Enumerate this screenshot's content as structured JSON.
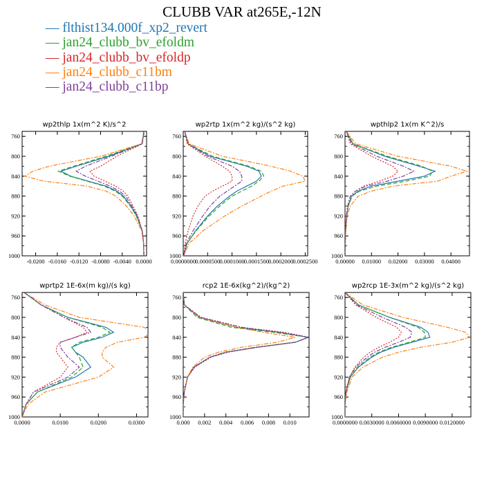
{
  "title": "CLUBB VAR at265E,-12N",
  "legend": [
    {
      "label": "flthist134.000f_xp2_revert",
      "color": "#1f77b4",
      "dash": "solid"
    },
    {
      "label": "jan24_clubb_bv_efoldm",
      "color": "#2ca02c",
      "dash": "dash"
    },
    {
      "label": "jan24_clubb_bv_efoldp",
      "color": "#d62728",
      "dash": "dot"
    },
    {
      "label": "jan24_clubb_c11bm",
      "color": "#ff7f0e",
      "dash": "dashdot"
    },
    {
      "label": "jan24_clubb_c11bp",
      "color": "#7f3f98",
      "dash": "dashdot"
    }
  ],
  "chart_data": [
    {
      "type": "line",
      "title": "wp2thlp   1x(m^2 K)/s^2",
      "xlim": [
        -0.0225,
        0.0005
      ],
      "ylim": [
        1000,
        750
      ],
      "xticks": [
        -0.02,
        -0.016,
        -0.012,
        -0.008,
        -0.004,
        0.0
      ],
      "xtick_labels": [
        "-0.0200",
        "-0.0160",
        "-0.0120",
        "-0.0080",
        "-0.0040",
        "0.0000"
      ],
      "yticks": [
        760,
        800,
        840,
        880,
        920,
        960,
        1000
      ],
      "ytick_labels": [
        "760",
        "800",
        "840",
        "880",
        "920",
        "960",
        "1000"
      ],
      "y": [
        750,
        775,
        800,
        820,
        830,
        840,
        850,
        860,
        870,
        880,
        900,
        920,
        950,
        975,
        1000
      ],
      "series": [
        {
          "name": "flthist134.000f_xp2_revert",
          "values": [
            0,
            -0.0003,
            -0.0065,
            -0.0125,
            -0.0153,
            -0.0135,
            -0.0103,
            -0.007,
            -0.005,
            -0.0038,
            -0.0024,
            -0.0013,
            -0.0003,
            -5e-05,
            0
          ]
        },
        {
          "name": "jan24_clubb_bv_efoldm",
          "values": [
            0,
            -0.0004,
            -0.007,
            -0.013,
            -0.0158,
            -0.0137,
            -0.0105,
            -0.0073,
            -0.0053,
            -0.004,
            -0.0025,
            -0.0014,
            -0.0003,
            -5e-05,
            0
          ]
        },
        {
          "name": "jan24_clubb_bv_efoldp",
          "values": [
            0,
            -0.0003,
            -0.005,
            -0.008,
            -0.01,
            -0.0092,
            -0.0072,
            -0.0052,
            -0.0038,
            -0.003,
            -0.002,
            -0.0011,
            -0.0003,
            -5e-05,
            0
          ]
        },
        {
          "name": "jan24_clubb_c11bm",
          "values": [
            0,
            -0.0004,
            -0.008,
            -0.0175,
            -0.0205,
            -0.022,
            -0.0185,
            -0.0105,
            -0.007,
            -0.0052,
            -0.0032,
            -0.0018,
            -0.0004,
            -5e-05,
            0
          ]
        },
        {
          "name": "jan24_clubb_c11bp",
          "values": [
            0,
            -0.0003,
            -0.006,
            -0.0108,
            -0.0125,
            -0.0108,
            -0.0085,
            -0.0062,
            -0.0045,
            -0.0034,
            -0.0022,
            -0.0012,
            -0.0003,
            -5e-05,
            0
          ]
        }
      ]
    },
    {
      "type": "line",
      "title": "wp2rtp   1x(m^2 kg)/(s^2 kg)",
      "xlim": [
        0.0,
        0.000255
      ],
      "ylim": [
        1000,
        750
      ],
      "xticks": [
        0.0,
        5e-05,
        0.0001,
        0.00015,
        0.0002,
        0.00025
      ],
      "xtick_labels": [
        "0.0000000",
        "0.0000500",
        "0.0001000",
        "0.0001500",
        "0.0002000",
        "0.0002500"
      ],
      "yticks": [
        760,
        800,
        840,
        880,
        920,
        960,
        1000
      ],
      "ytick_labels": [
        "760",
        "800",
        "840",
        "880",
        "920",
        "960",
        "1000"
      ],
      "y": [
        750,
        775,
        800,
        820,
        830,
        840,
        850,
        860,
        870,
        880,
        900,
        920,
        950,
        975,
        1000
      ],
      "series": [
        {
          "name": "flthist134.000f_xp2_revert",
          "values": [
            3e-06,
            1e-05,
            5.5e-05,
            0.00013,
            0.000155,
            0.00016,
            0.00015,
            0.00013,
            0.00011,
            9.5e-05,
            7e-05,
            5e-05,
            2.5e-05,
            8e-06,
            1e-06
          ]
        },
        {
          "name": "jan24_clubb_bv_efoldm",
          "values": [
            3e-06,
            1e-05,
            6e-05,
            0.000135,
            0.00016,
            0.000165,
            0.000155,
            0.00014,
            0.00012,
            0.0001,
            7.5e-05,
            5.3e-05,
            2.6e-05,
            8e-06,
            1e-06
          ]
        },
        {
          "name": "jan24_clubb_bv_efoldp",
          "values": [
            3e-06,
            8e-06,
            4.5e-05,
            8e-05,
            9.5e-05,
            0.0001,
            0.0001,
            8e-05,
            6e-05,
            4.5e-05,
            3e-05,
            2e-05,
            1e-05,
            4e-06,
            1e-06
          ]
        },
        {
          "name": "jan24_clubb_c11bm",
          "values": [
            3e-06,
            1.2e-05,
            8e-05,
            0.00018,
            0.00022,
            0.000245,
            0.00025,
            0.000205,
            0.00018,
            0.00016,
            0.00012,
            8.5e-05,
            4e-05,
            1.2e-05,
            1e-06
          ]
        },
        {
          "name": "jan24_clubb_c11bp",
          "values": [
            3e-06,
            1e-05,
            5e-05,
            0.0001,
            0.000115,
            0.00012,
            0.00012,
            0.000105,
            9e-05,
            7.5e-05,
            5.5e-05,
            4e-05,
            2e-05,
            6e-06,
            1e-06
          ]
        }
      ]
    },
    {
      "type": "line",
      "title": "wpthlp2   1x(m K^2)/s",
      "xlim": [
        0.0,
        0.047
      ],
      "ylim": [
        1000,
        750
      ],
      "xticks": [
        0.0,
        0.01,
        0.02,
        0.03,
        0.04
      ],
      "xtick_labels": [
        "0.00000",
        "0.01000",
        "0.02000",
        "0.03000",
        "0.04000"
      ],
      "yticks": [
        760,
        800,
        840,
        880,
        920,
        960,
        1000
      ],
      "ytick_labels": [
        "760",
        "800",
        "840",
        "880",
        "920",
        "960",
        "1000"
      ],
      "y": [
        750,
        775,
        800,
        820,
        830,
        840,
        850,
        860,
        870,
        880,
        900,
        920,
        950,
        975,
        1000
      ],
      "series": [
        {
          "name": "flthist134.000f_xp2_revert",
          "values": [
            0.0005,
            0.003,
            0.015,
            0.028,
            0.034,
            0.03,
            0.02,
            0.01,
            0.005,
            0.0025,
            0.0012,
            0.0006,
            0.0002,
            0.0001,
            0.0
          ]
        },
        {
          "name": "jan24_clubb_bv_efoldm",
          "values": [
            0.0005,
            0.003,
            0.016,
            0.029,
            0.033,
            0.032,
            0.023,
            0.012,
            0.0055,
            0.0027,
            0.0012,
            0.0006,
            0.0002,
            0.0001,
            0.0
          ]
        },
        {
          "name": "jan24_clubb_bv_efoldp",
          "values": [
            0.0005,
            0.002,
            0.01,
            0.018,
            0.02,
            0.018,
            0.013,
            0.007,
            0.004,
            0.002,
            0.001,
            0.0005,
            0.0002,
            0.0001,
            0.0
          ]
        },
        {
          "name": "jan24_clubb_c11bm",
          "values": [
            0.0005,
            0.004,
            0.02,
            0.04,
            0.046,
            0.04,
            0.035,
            0.018,
            0.01,
            0.005,
            0.002,
            0.0008,
            0.0003,
            0.0001,
            0.0
          ]
        },
        {
          "name": "jan24_clubb_c11bp",
          "values": [
            0.0005,
            0.0025,
            0.012,
            0.022,
            0.026,
            0.022,
            0.016,
            0.008,
            0.004,
            0.002,
            0.001,
            0.0005,
            0.0002,
            0.0001,
            0.0
          ]
        }
      ]
    },
    {
      "type": "line",
      "title": "wprtp2   1E-6x(m kg)/(s kg)",
      "xlim": [
        0.0,
        0.033
      ],
      "ylim": [
        1000,
        750
      ],
      "xticks": [
        0.0,
        0.01,
        0.02,
        0.03
      ],
      "xtick_labels": [
        "0.0000",
        "0.0100",
        "0.0200",
        "0.0300"
      ],
      "yticks": [
        760,
        800,
        840,
        880,
        920,
        960,
        1000
      ],
      "ytick_labels": [
        "760",
        "800",
        "840",
        "880",
        "920",
        "960",
        "1000"
      ],
      "y": [
        750,
        775,
        800,
        820,
        830,
        840,
        850,
        860,
        870,
        880,
        900,
        920,
        950,
        975,
        1000
      ],
      "series": [
        {
          "name": "flthist134.000f_xp2_revert",
          "values": [
            0.0005,
            0.005,
            0.012,
            0.022,
            0.024,
            0.021,
            0.016,
            0.013,
            0.014,
            0.016,
            0.018,
            0.014,
            0.004,
            0.001,
            0.0
          ]
        },
        {
          "name": "jan24_clubb_bv_efoldm",
          "values": [
            0.0005,
            0.005,
            0.012,
            0.021,
            0.023,
            0.02,
            0.015,
            0.013,
            0.014,
            0.015,
            0.016,
            0.013,
            0.004,
            0.001,
            0.0
          ]
        },
        {
          "name": "jan24_clubb_bv_efoldp",
          "values": [
            0.0005,
            0.005,
            0.011,
            0.016,
            0.017,
            0.014,
            0.01,
            0.009,
            0.009,
            0.01,
            0.012,
            0.01,
            0.003,
            0.001,
            0.0
          ]
        },
        {
          "name": "jan24_clubb_c11bm",
          "values": [
            0.0005,
            0.006,
            0.015,
            0.032,
            0.034,
            0.032,
            0.025,
            0.022,
            0.021,
            0.021,
            0.024,
            0.02,
            0.006,
            0.0015,
            0.0
          ]
        },
        {
          "name": "jan24_clubb_c11bp",
          "values": [
            0.0005,
            0.005,
            0.011,
            0.017,
            0.018,
            0.014,
            0.01,
            0.01,
            0.011,
            0.012,
            0.015,
            0.012,
            0.003,
            0.001,
            0.0
          ]
        }
      ]
    },
    {
      "type": "line",
      "title": "rcp2   1E-6x(kg^2)/(kg^2)",
      "xlim": [
        0.0,
        0.0118
      ],
      "ylim": [
        1000,
        750
      ],
      "xticks": [
        0.0,
        0.002,
        0.004,
        0.006,
        0.008,
        0.01
      ],
      "xtick_labels": [
        "0.000",
        "0.002",
        "0.004",
        "0.006",
        "0.008",
        "0.010"
      ],
      "yticks": [
        760,
        800,
        840,
        880,
        920,
        960,
        1000
      ],
      "ytick_labels": [
        "760",
        "800",
        "840",
        "880",
        "920",
        "960",
        "1000"
      ],
      "y": [
        750,
        775,
        800,
        820,
        830,
        840,
        850,
        860,
        870,
        880,
        900,
        920,
        950,
        975,
        1000
      ],
      "series": [
        {
          "name": "flthist134.000f_xp2_revert",
          "values": [
            0.0,
            0.0001,
            0.0015,
            0.005,
            0.009,
            0.0117,
            0.0105,
            0.007,
            0.004,
            0.0025,
            0.001,
            0.0004,
            0.0001,
            0.0,
            0.0
          ]
        },
        {
          "name": "jan24_clubb_bv_efoldm",
          "values": [
            0.0,
            0.0001,
            0.0013,
            0.0045,
            0.0085,
            0.0117,
            0.0105,
            0.0068,
            0.0039,
            0.0025,
            0.001,
            0.0004,
            0.0001,
            0.0,
            0.0
          ]
        },
        {
          "name": "jan24_clubb_bv_efoldp",
          "values": [
            0.0,
            0.0001,
            0.0017,
            0.0055,
            0.0095,
            0.0118,
            0.0105,
            0.007,
            0.0042,
            0.0026,
            0.0011,
            0.0004,
            0.0001,
            0.0,
            0.0
          ]
        },
        {
          "name": "jan24_clubb_c11bm",
          "values": [
            0.0,
            0.0001,
            0.0015,
            0.005,
            0.0075,
            0.0105,
            0.0088,
            0.0055,
            0.0033,
            0.002,
            0.0009,
            0.0004,
            0.0001,
            0.0,
            0.0
          ]
        },
        {
          "name": "jan24_clubb_c11bp",
          "values": [
            0.0,
            0.0001,
            0.0016,
            0.0055,
            0.009,
            0.0118,
            0.0105,
            0.0068,
            0.004,
            0.0025,
            0.001,
            0.0004,
            0.0001,
            0.0,
            0.0
          ]
        }
      ]
    },
    {
      "type": "line",
      "title": "wp2rcp   1E-3x(m^2 kg)/(s^2 kg)",
      "xlim": [
        0.0,
        0.0141
      ],
      "ylim": [
        1000,
        750
      ],
      "xticks": [
        0.0,
        0.003,
        0.006,
        0.009,
        0.012
      ],
      "xtick_labels": [
        "0.0000000",
        "0.0030000",
        "0.0060000",
        "0.0090000",
        "0.0120000"
      ],
      "yticks": [
        760,
        800,
        840,
        880,
        920,
        960,
        1000
      ],
      "ytick_labels": [
        "760",
        "800",
        "840",
        "880",
        "920",
        "960",
        "1000"
      ],
      "y": [
        750,
        775,
        800,
        820,
        830,
        840,
        850,
        860,
        870,
        880,
        900,
        920,
        950,
        975,
        1000
      ],
      "series": [
        {
          "name": "flthist134.000f_xp2_revert",
          "values": [
            0.0,
            0.0015,
            0.005,
            0.0085,
            0.0093,
            0.0095,
            0.0075,
            0.0055,
            0.004,
            0.003,
            0.0015,
            0.0006,
            0.0001,
            0.0,
            0.0
          ]
        },
        {
          "name": "jan24_clubb_bv_efoldm",
          "values": [
            0.0,
            0.0015,
            0.005,
            0.0082,
            0.0089,
            0.009,
            0.0072,
            0.0052,
            0.0038,
            0.0028,
            0.0014,
            0.0006,
            0.0001,
            0.0,
            0.0
          ]
        },
        {
          "name": "jan24_clubb_bv_efoldp",
          "values": [
            0.0,
            0.0012,
            0.0035,
            0.0058,
            0.0063,
            0.006,
            0.005,
            0.0038,
            0.0028,
            0.0021,
            0.0011,
            0.0005,
            0.0001,
            0.0,
            0.0
          ]
        },
        {
          "name": "jan24_clubb_c11bm",
          "values": [
            0.0,
            0.002,
            0.0065,
            0.0115,
            0.0135,
            0.014,
            0.012,
            0.0085,
            0.006,
            0.0042,
            0.002,
            0.0008,
            0.0002,
            0.0,
            0.0
          ]
        },
        {
          "name": "jan24_clubb_c11bp",
          "values": [
            0.0,
            0.0013,
            0.0042,
            0.0068,
            0.0075,
            0.0073,
            0.006,
            0.0045,
            0.0033,
            0.0025,
            0.0012,
            0.0005,
            0.0001,
            0.0,
            0.0
          ]
        }
      ]
    }
  ]
}
